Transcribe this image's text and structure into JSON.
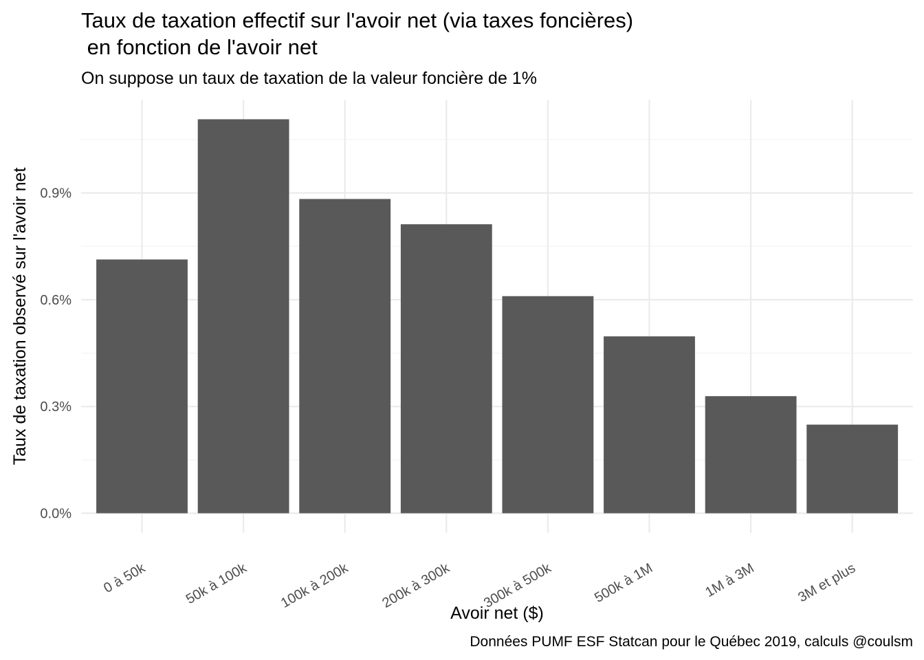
{
  "chart_data": {
    "type": "bar",
    "title_line1": "Taux de taxation effectif sur l'avoir net (via taxes foncières)",
    "title_line2": " en fonction de l'avoir net",
    "subtitle": "On suppose un taux de taxation de la valeur foncière de 1%",
    "xlabel": "Avoir net ($)",
    "ylabel": "Taux de taxation observé sur l'avoir net",
    "caption": "Données PUMF ESF Statcan pour le Québec 2019, calculs @coulsm",
    "categories": [
      "0 à 50k",
      "50k à 100k",
      "100k à 200k",
      "200k à 300k",
      "300k à 500k",
      "500k à 1M",
      "1M à 3M",
      "3M et plus"
    ],
    "values": [
      0.00713,
      0.01107,
      0.00883,
      0.00812,
      0.0061,
      0.00497,
      0.00329,
      0.00249
    ],
    "yticks": [
      0,
      0.003,
      0.006,
      0.009
    ],
    "ytick_labels": [
      "0.0%",
      "0.3%",
      "0.6%",
      "0.9%"
    ],
    "ylim": [
      -0.00055,
      0.01162
    ],
    "grid": true,
    "legend": "none",
    "colors": {
      "bar": "#595959",
      "grid_major": "#ebebeb",
      "grid_minor": "#f5f5f5",
      "axis_text": "#4d4d4d",
      "text": "#000000"
    }
  }
}
